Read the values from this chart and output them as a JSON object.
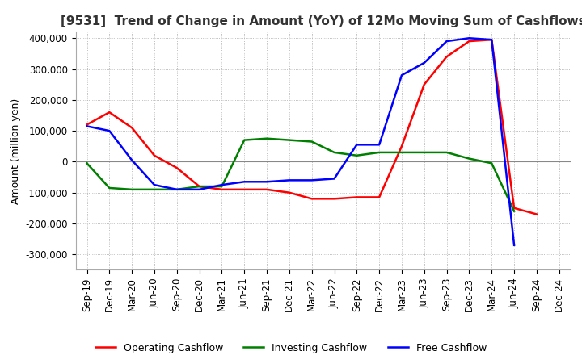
{
  "title": "[9531]  Trend of Change in Amount (YoY) of 12Mo Moving Sum of Cashflows",
  "ylabel": "Amount (million yen)",
  "ylim": [
    -350000,
    420000
  ],
  "yticks": [
    -300000,
    -200000,
    -100000,
    0,
    100000,
    200000,
    300000,
    400000
  ],
  "background_color": "#ffffff",
  "grid_color": "#aaaaaa",
  "x_labels": [
    "Sep-19",
    "Dec-19",
    "Mar-20",
    "Jun-20",
    "Sep-20",
    "Dec-20",
    "Mar-21",
    "Jun-21",
    "Sep-21",
    "Dec-21",
    "Mar-22",
    "Jun-22",
    "Sep-22",
    "Dec-22",
    "Mar-23",
    "Jun-23",
    "Sep-23",
    "Dec-23",
    "Mar-24",
    "Jun-24",
    "Sep-24",
    "Dec-24"
  ],
  "operating_cashflow": [
    120000,
    160000,
    110000,
    20000,
    -20000,
    -80000,
    -90000,
    -90000,
    -90000,
    -100000,
    -120000,
    -120000,
    -115000,
    -115000,
    50000,
    250000,
    340000,
    390000,
    395000,
    -150000,
    -170000,
    null
  ],
  "investing_cashflow": [
    -5000,
    -85000,
    -90000,
    -90000,
    -90000,
    -80000,
    -80000,
    70000,
    75000,
    70000,
    65000,
    30000,
    20000,
    30000,
    30000,
    30000,
    30000,
    10000,
    -5000,
    -160000,
    null,
    null
  ],
  "free_cashflow": [
    115000,
    100000,
    5000,
    -75000,
    -90000,
    -90000,
    -75000,
    -65000,
    -65000,
    -60000,
    -60000,
    -55000,
    55000,
    55000,
    280000,
    320000,
    390000,
    400000,
    395000,
    -270000,
    null,
    null
  ],
  "operating_color": "#ff0000",
  "investing_color": "#008000",
  "free_color": "#0000ff",
  "line_width": 1.8,
  "title_color": "#333333",
  "title_fontsize": 11,
  "axis_fontsize": 8.5,
  "ylabel_fontsize": 9
}
